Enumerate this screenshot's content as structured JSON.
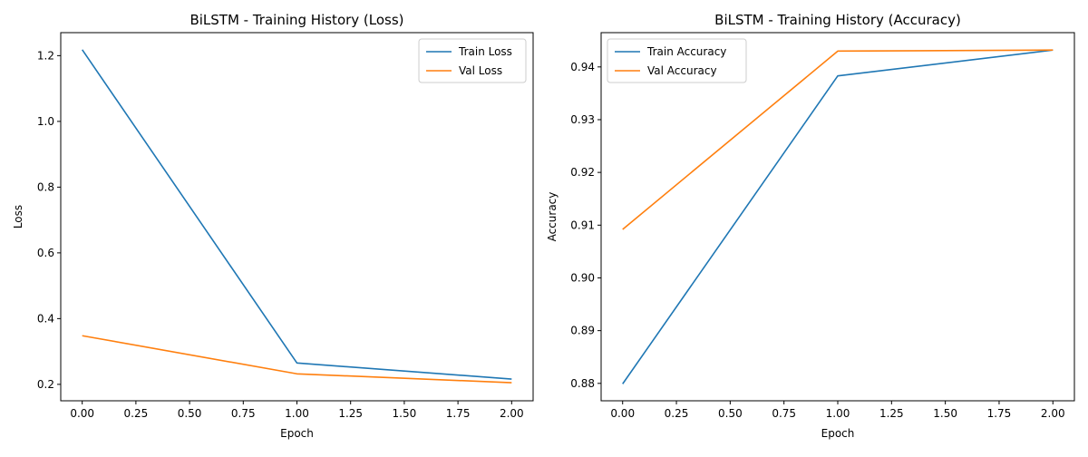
{
  "chart_data": [
    {
      "type": "line",
      "title": "BiLSTM - Training History (Loss)",
      "xlabel": "Epoch",
      "ylabel": "Loss",
      "x": [
        0,
        1,
        2
      ],
      "xlim": [
        -0.1,
        2.1
      ],
      "ylim": [
        0.15,
        1.27
      ],
      "xticks": [
        "0.00",
        "0.25",
        "0.50",
        "0.75",
        "1.00",
        "1.25",
        "1.50",
        "1.75",
        "2.00"
      ],
      "yticks": [
        "0.2",
        "0.4",
        "0.6",
        "0.8",
        "1.0",
        "1.2"
      ],
      "grid": false,
      "legend_position": "top-right",
      "series": [
        {
          "name": "Train Loss",
          "color": "#1f77b4",
          "values": [
            1.218,
            0.265,
            0.216
          ]
        },
        {
          "name": "Val Loss",
          "color": "#ff7f0e",
          "values": [
            0.348,
            0.232,
            0.205
          ]
        }
      ]
    },
    {
      "type": "line",
      "title": "BiLSTM - Training History (Accuracy)",
      "xlabel": "Epoch",
      "ylabel": "Accuracy",
      "x": [
        0,
        1,
        2
      ],
      "xlim": [
        -0.1,
        2.1
      ],
      "ylim": [
        0.8767,
        0.9465
      ],
      "xticks": [
        "0.00",
        "0.25",
        "0.50",
        "0.75",
        "1.00",
        "1.25",
        "1.50",
        "1.75",
        "2.00"
      ],
      "yticks": [
        "0.88",
        "0.89",
        "0.90",
        "0.91",
        "0.92",
        "0.93",
        "0.94"
      ],
      "grid": false,
      "legend_position": "top-left",
      "series": [
        {
          "name": "Train Accuracy",
          "color": "#1f77b4",
          "values": [
            0.8799,
            0.9383,
            0.9432
          ]
        },
        {
          "name": "Val Accuracy",
          "color": "#ff7f0e",
          "values": [
            0.9092,
            0.943,
            0.9432
          ]
        }
      ]
    }
  ]
}
